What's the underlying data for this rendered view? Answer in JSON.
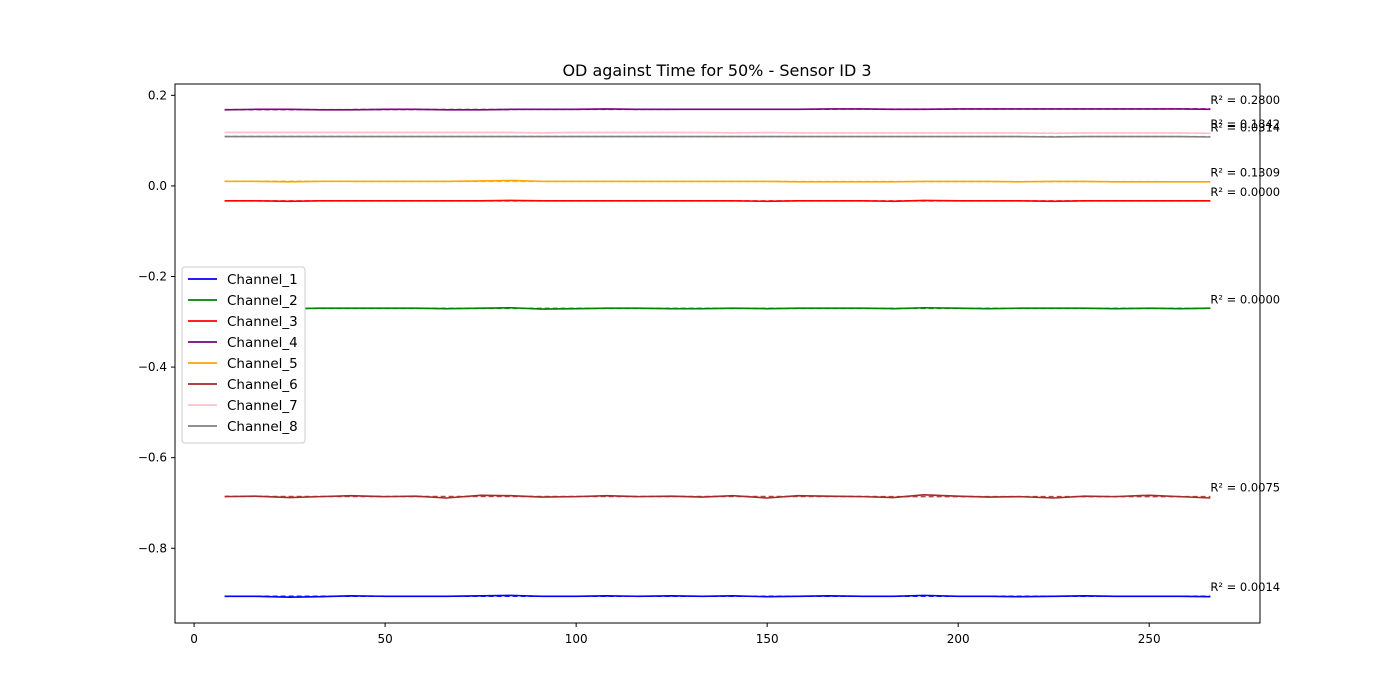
{
  "chart_data": {
    "type": "line",
    "title": "OD against Time for 50% - Sensor ID 3",
    "xlabel": "",
    "ylabel": "",
    "xlim": [
      -5,
      279
    ],
    "ylim": [
      -0.965,
      0.225
    ],
    "xticks": [
      0,
      50,
      100,
      150,
      200,
      250
    ],
    "yticks": [
      0.2,
      0.0,
      -0.2,
      -0.4,
      -0.6,
      -0.8
    ],
    "ytick_labels": [
      "0.2",
      "0.0",
      "−0.2",
      "−0.4",
      "−0.6",
      "−0.8"
    ],
    "grid": false,
    "legend_position": "center-left",
    "x": [
      8,
      16,
      25,
      33,
      41,
      50,
      58,
      66,
      75,
      83,
      91,
      100,
      108,
      116,
      125,
      133,
      141,
      150,
      158,
      166,
      175,
      183,
      191,
      200,
      208,
      216,
      225,
      233,
      241,
      250,
      258,
      266
    ],
    "series": [
      {
        "name": "Channel_1",
        "color": "#0000ff",
        "r2": "R² = 0.0014",
        "values": [
          -0.906,
          -0.906,
          -0.908,
          -0.907,
          -0.905,
          -0.906,
          -0.906,
          -0.906,
          -0.905,
          -0.904,
          -0.906,
          -0.906,
          -0.905,
          -0.906,
          -0.905,
          -0.906,
          -0.905,
          -0.907,
          -0.906,
          -0.905,
          -0.906,
          -0.906,
          -0.904,
          -0.906,
          -0.906,
          -0.907,
          -0.906,
          -0.905,
          -0.906,
          -0.906,
          -0.906,
          -0.907
        ]
      },
      {
        "name": "Channel_2",
        "color": "#008000",
        "r2": "R² = 0.0000",
        "values": [
          -0.27,
          -0.271,
          -0.271,
          -0.27,
          -0.27,
          -0.27,
          -0.27,
          -0.271,
          -0.27,
          -0.269,
          -0.272,
          -0.271,
          -0.27,
          -0.27,
          -0.271,
          -0.271,
          -0.27,
          -0.271,
          -0.27,
          -0.27,
          -0.27,
          -0.271,
          -0.269,
          -0.27,
          -0.271,
          -0.27,
          -0.27,
          -0.27,
          -0.271,
          -0.27,
          -0.271,
          -0.27
        ]
      },
      {
        "name": "Channel_3",
        "color": "#ff0000",
        "r2": "R² = 0.0000",
        "values": [
          -0.033,
          -0.033,
          -0.034,
          -0.033,
          -0.033,
          -0.033,
          -0.033,
          -0.033,
          -0.033,
          -0.032,
          -0.033,
          -0.033,
          -0.033,
          -0.033,
          -0.033,
          -0.033,
          -0.033,
          -0.034,
          -0.033,
          -0.033,
          -0.033,
          -0.034,
          -0.032,
          -0.033,
          -0.033,
          -0.033,
          -0.034,
          -0.033,
          -0.033,
          -0.033,
          -0.033,
          -0.033
        ]
      },
      {
        "name": "Channel_4",
        "color": "#800080",
        "r2": "R² = 0.2800",
        "values": [
          0.168,
          0.169,
          0.169,
          0.168,
          0.168,
          0.169,
          0.169,
          0.168,
          0.168,
          0.169,
          0.169,
          0.169,
          0.17,
          0.169,
          0.169,
          0.169,
          0.169,
          0.169,
          0.169,
          0.17,
          0.17,
          0.169,
          0.169,
          0.17,
          0.17,
          0.17,
          0.17,
          0.17,
          0.17,
          0.17,
          0.17,
          0.169
        ]
      },
      {
        "name": "Channel_5",
        "color": "#ffa500",
        "r2": "R² = 0.1309",
        "values": [
          0.01,
          0.01,
          0.009,
          0.01,
          0.01,
          0.01,
          0.01,
          0.01,
          0.011,
          0.012,
          0.01,
          0.01,
          0.01,
          0.01,
          0.01,
          0.01,
          0.01,
          0.01,
          0.009,
          0.009,
          0.009,
          0.009,
          0.01,
          0.01,
          0.01,
          0.009,
          0.01,
          0.01,
          0.009,
          0.009,
          0.009,
          0.009
        ]
      },
      {
        "name": "Channel_6",
        "color": "#a52a2a",
        "r2": "R² = 0.0075",
        "values": [
          -0.686,
          -0.685,
          -0.688,
          -0.686,
          -0.684,
          -0.686,
          -0.685,
          -0.689,
          -0.683,
          -0.684,
          -0.687,
          -0.686,
          -0.684,
          -0.686,
          -0.685,
          -0.687,
          -0.684,
          -0.689,
          -0.684,
          -0.685,
          -0.686,
          -0.688,
          -0.682,
          -0.685,
          -0.687,
          -0.686,
          -0.689,
          -0.685,
          -0.686,
          -0.683,
          -0.686,
          -0.689
        ]
      },
      {
        "name": "Channel_7",
        "color": "#ffc0cb",
        "r2": "R² = 0.1842",
        "values": [
          0.118,
          0.118,
          0.118,
          0.118,
          0.118,
          0.118,
          0.118,
          0.118,
          0.118,
          0.118,
          0.117,
          0.118,
          0.118,
          0.118,
          0.118,
          0.118,
          0.117,
          0.118,
          0.117,
          0.117,
          0.117,
          0.117,
          0.117,
          0.117,
          0.117,
          0.117,
          0.116,
          0.117,
          0.117,
          0.117,
          0.117,
          0.116
        ]
      },
      {
        "name": "Channel_8",
        "color": "#808080",
        "r2": "R² = 0.0314",
        "values": [
          0.109,
          0.109,
          0.109,
          0.109,
          0.109,
          0.109,
          0.109,
          0.109,
          0.109,
          0.109,
          0.109,
          0.109,
          0.109,
          0.109,
          0.109,
          0.109,
          0.109,
          0.109,
          0.109,
          0.109,
          0.109,
          0.109,
          0.109,
          0.109,
          0.109,
          0.109,
          0.108,
          0.109,
          0.109,
          0.109,
          0.109,
          0.108
        ]
      }
    ]
  }
}
